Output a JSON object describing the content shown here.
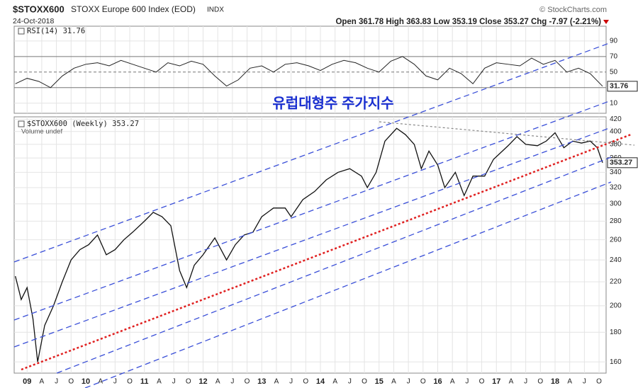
{
  "header": {
    "symbol": "$STOXX600",
    "name": "STOXX Europe 600 Index (EOD)",
    "exchange": "INDX",
    "source": "© StockCharts.com",
    "date": "24-Oct-2018",
    "quote": "Open 361.78  High 363.83  Low 353.19  Close 353.27  Chg -7.97 (-2.21%)"
  },
  "annotation": "유럽대형주 주가지수",
  "chart_data": [
    {
      "type": "line",
      "series": [
        {
          "name": "RSI(14) 31.76",
          "color": "#222222",
          "x": [
            2008.8,
            2009.0,
            2009.2,
            2009.4,
            2009.6,
            2009.8,
            2010.0,
            2010.2,
            2010.4,
            2010.6,
            2010.8,
            2011.0,
            2011.2,
            2011.4,
            2011.6,
            2011.8,
            2012.0,
            2012.2,
            2012.4,
            2012.6,
            2012.8,
            2013.0,
            2013.2,
            2013.4,
            2013.6,
            2013.8,
            2014.0,
            2014.2,
            2014.4,
            2014.6,
            2014.8,
            2015.0,
            2015.2,
            2015.4,
            2015.6,
            2015.8,
            2016.0,
            2016.2,
            2016.4,
            2016.6,
            2016.8,
            2017.0,
            2017.2,
            2017.4,
            2017.6,
            2017.8,
            2018.0,
            2018.2,
            2018.4,
            2018.6,
            2018.81
          ],
          "values": [
            35,
            42,
            38,
            30,
            45,
            55,
            60,
            62,
            58,
            65,
            60,
            55,
            50,
            62,
            58,
            64,
            60,
            45,
            32,
            40,
            55,
            58,
            50,
            60,
            62,
            58,
            52,
            60,
            65,
            62,
            55,
            50,
            64,
            70,
            60,
            45,
            40,
            55,
            48,
            35,
            55,
            62,
            60,
            58,
            68,
            60,
            65,
            50,
            55,
            48,
            31.76
          ]
        }
      ],
      "ylim": [
        -3,
        109
      ],
      "yticks": [
        90,
        70,
        50,
        30,
        10
      ],
      "xlim": [
        2008.78,
        2018.87
      ],
      "grid": true
    },
    {
      "type": "line",
      "log_scale": true,
      "legend_note": "Volume undef",
      "series": [
        {
          "name": "$STOXX600 (Weekly) 353.27",
          "color": "#111111",
          "x": [
            2008.8,
            2008.9,
            2009.0,
            2009.1,
            2009.18,
            2009.3,
            2009.45,
            2009.6,
            2009.75,
            2009.9,
            2010.05,
            2010.2,
            2010.35,
            2010.5,
            2010.65,
            2010.8,
            2011.0,
            2011.15,
            2011.3,
            2011.45,
            2011.6,
            2011.72,
            2011.85,
            2012.0,
            2012.2,
            2012.4,
            2012.55,
            2012.7,
            2012.85,
            2013.0,
            2013.2,
            2013.4,
            2013.5,
            2013.7,
            2013.9,
            2014.1,
            2014.3,
            2014.5,
            2014.7,
            2014.8,
            2014.95,
            2015.1,
            2015.3,
            2015.45,
            2015.6,
            2015.72,
            2015.85,
            2016.0,
            2016.12,
            2016.3,
            2016.45,
            2016.6,
            2016.8,
            2016.95,
            2017.2,
            2017.35,
            2017.5,
            2017.7,
            2017.85,
            2018.0,
            2018.15,
            2018.3,
            2018.45,
            2018.6,
            2018.72,
            2018.81
          ],
          "values": [
            225,
            205,
            215,
            190,
            160,
            185,
            200,
            220,
            240,
            250,
            255,
            265,
            245,
            250,
            260,
            268,
            280,
            290,
            285,
            275,
            230,
            215,
            235,
            245,
            262,
            240,
            255,
            265,
            268,
            285,
            295,
            295,
            285,
            305,
            315,
            330,
            340,
            345,
            335,
            320,
            340,
            385,
            405,
            395,
            380,
            345,
            370,
            350,
            320,
            340,
            310,
            335,
            335,
            358,
            378,
            392,
            380,
            378,
            385,
            398,
            375,
            385,
            382,
            385,
            375,
            353.27
          ]
        }
      ],
      "ylim": [
        153,
        424
      ],
      "yticks": [
        160,
        180,
        200,
        220,
        240,
        260,
        280,
        300,
        320,
        340,
        360,
        380,
        400,
        420
      ],
      "xlim": [
        2008.78,
        2018.87
      ],
      "xticks": [
        {
          "value": 2009,
          "label": "09"
        },
        {
          "value": 2009.25,
          "label": "A"
        },
        {
          "value": 2009.5,
          "label": "J"
        },
        {
          "value": 2009.75,
          "label": "O"
        },
        {
          "value": 2010,
          "label": "10"
        },
        {
          "value": 2010.25,
          "label": "A"
        },
        {
          "value": 2010.5,
          "label": "J"
        },
        {
          "value": 2010.75,
          "label": "O"
        },
        {
          "value": 2011,
          "label": "11"
        },
        {
          "value": 2011.25,
          "label": "A"
        },
        {
          "value": 2011.5,
          "label": "J"
        },
        {
          "value": 2011.75,
          "label": "O"
        },
        {
          "value": 2012,
          "label": "12"
        },
        {
          "value": 2012.25,
          "label": "A"
        },
        {
          "value": 2012.5,
          "label": "J"
        },
        {
          "value": 2012.75,
          "label": "O"
        },
        {
          "value": 2013,
          "label": "13"
        },
        {
          "value": 2013.25,
          "label": "A"
        },
        {
          "value": 2013.5,
          "label": "J"
        },
        {
          "value": 2013.75,
          "label": "O"
        },
        {
          "value": 2014,
          "label": "14"
        },
        {
          "value": 2014.25,
          "label": "A"
        },
        {
          "value": 2014.5,
          "label": "J"
        },
        {
          "value": 2014.75,
          "label": "O"
        },
        {
          "value": 2015,
          "label": "15"
        },
        {
          "value": 2015.25,
          "label": "A"
        },
        {
          "value": 2015.5,
          "label": "J"
        },
        {
          "value": 2015.75,
          "label": "O"
        },
        {
          "value": 2016,
          "label": "16"
        },
        {
          "value": 2016.25,
          "label": "A"
        },
        {
          "value": 2016.5,
          "label": "J"
        },
        {
          "value": 2016.75,
          "label": "O"
        },
        {
          "value": 2017,
          "label": "17"
        },
        {
          "value": 2017.25,
          "label": "A"
        },
        {
          "value": 2017.5,
          "label": "J"
        },
        {
          "value": 2017.75,
          "label": "O"
        },
        {
          "value": 2018,
          "label": "18"
        },
        {
          "value": 2018.25,
          "label": "A"
        },
        {
          "value": 2018.5,
          "label": "J"
        },
        {
          "value": 2018.75,
          "label": "O"
        }
      ],
      "grid": true
    }
  ]
}
